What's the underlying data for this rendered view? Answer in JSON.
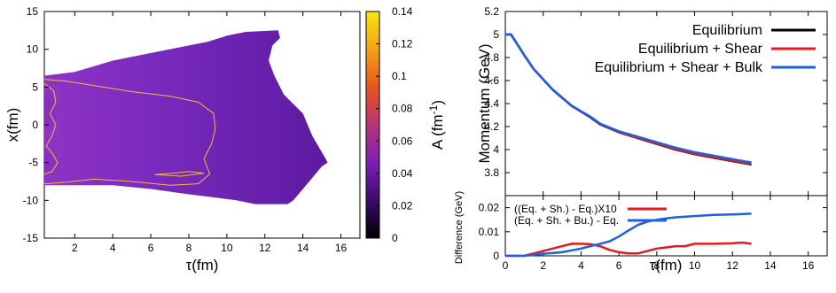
{
  "chart_data": [
    {
      "type": "heatmap",
      "xlabel": "τ(fm)",
      "ylabel": "x(fm)",
      "xlim": [
        0.4,
        17
      ],
      "ylim": [
        -15,
        15
      ],
      "xticks": [
        "2",
        "4",
        "6",
        "8",
        "10",
        "12",
        "14",
        "16"
      ],
      "yticks": [
        "15",
        "10",
        "5",
        "0",
        "-5",
        "-10",
        "-15"
      ],
      "colorbar": {
        "label": "A (fm",
        "label_exp": "-1",
        "label_close": ")",
        "range": [
          0,
          0.14
        ],
        "ticks": [
          "0.14",
          "0.12",
          "0.1",
          "0.08",
          "0.06",
          "0.04",
          "0.02",
          "0"
        ],
        "colors": [
          "#000000",
          "#3a0a6b",
          "#7e1fb3",
          "#b8337a",
          "#e5561e",
          "#f3a21a",
          "#f6e60f"
        ]
      },
      "contour_color": "#f5b942",
      "region_upper_boundary": [
        [
          0.4,
          6.5
        ],
        [
          2,
          7
        ],
        [
          4,
          8.5
        ],
        [
          6,
          9.5
        ],
        [
          8,
          10.5
        ],
        [
          9,
          11
        ],
        [
          10,
          11.8
        ],
        [
          11,
          12.3
        ],
        [
          12.7,
          12.5
        ],
        [
          12.8,
          11.5
        ],
        [
          12.4,
          10.5
        ],
        [
          12.2,
          8.5
        ],
        [
          12.5,
          6.5
        ],
        [
          13,
          4
        ],
        [
          14,
          1.5
        ],
        [
          14.5,
          -1.5
        ],
        [
          15.2,
          -4.5
        ],
        [
          15.3,
          -5
        ]
      ],
      "region_lower_boundary": [
        [
          0.4,
          -8
        ],
        [
          2,
          -8
        ],
        [
          4,
          -8
        ],
        [
          6,
          -8.5
        ],
        [
          8,
          -9.2
        ],
        [
          9,
          -9.5
        ],
        [
          10.5,
          -10
        ],
        [
          11.5,
          -10.5
        ],
        [
          13.2,
          -10.5
        ],
        [
          13.5,
          -10
        ],
        [
          14,
          -8.5
        ],
        [
          14.5,
          -7
        ],
        [
          15,
          -5.5
        ],
        [
          15.3,
          -5
        ]
      ]
    },
    {
      "type": "line",
      "xlabel": "",
      "ylabel": "Momentum (GeV)",
      "xlim": [
        0,
        17
      ],
      "ylim": [
        3.6,
        5.2
      ],
      "yticks": [
        "5.2",
        "5",
        "4.8",
        "4.6",
        "4.4",
        "4.2",
        "4",
        "3.8"
      ],
      "legend": "top-right",
      "series": [
        {
          "name": "Equilibrium",
          "color": "#000000",
          "x": [
            0,
            0.3,
            0.5,
            1,
            1.5,
            2,
            2.5,
            3,
            3.5,
            4,
            4.5,
            5,
            6,
            7,
            8,
            9,
            10,
            11,
            12,
            13
          ],
          "y": [
            5.0,
            5.0,
            4.95,
            4.82,
            4.7,
            4.61,
            4.52,
            4.45,
            4.38,
            4.33,
            4.28,
            4.22,
            4.15,
            4.1,
            4.05,
            4.0,
            3.96,
            3.93,
            3.9,
            3.87
          ]
        },
        {
          "name": "Equilibrium + Shear",
          "color": "#e41a1c",
          "x": [
            0,
            0.3,
            0.5,
            1,
            1.5,
            2,
            2.5,
            3,
            3.5,
            4,
            4.5,
            5,
            6,
            7,
            8,
            9,
            10,
            11,
            12,
            13
          ],
          "y": [
            5.0,
            5.0,
            4.95,
            4.82,
            4.7,
            4.61,
            4.52,
            4.45,
            4.38,
            4.333,
            4.285,
            4.224,
            4.152,
            4.102,
            4.053,
            4.003,
            3.964,
            3.934,
            3.904,
            3.874
          ]
        },
        {
          "name": "Equilibrium + Shear + Bulk",
          "color": "#1f5fe0",
          "x": [
            0,
            0.3,
            0.5,
            1,
            1.5,
            2,
            2.5,
            3,
            3.5,
            4,
            4.5,
            5,
            6,
            7,
            8,
            9,
            10,
            11,
            12,
            13
          ],
          "y": [
            5.0,
            5.0,
            4.95,
            4.82,
            4.7,
            4.611,
            4.522,
            4.452,
            4.383,
            4.333,
            4.285,
            4.226,
            4.159,
            4.112,
            4.064,
            4.016,
            3.977,
            3.947,
            3.917,
            3.888
          ]
        }
      ]
    },
    {
      "type": "line",
      "xlabel": "τ(fm)",
      "ylabel": "Difference (GeV)",
      "xlim": [
        0,
        17
      ],
      "ylim": [
        0,
        0.025
      ],
      "xticks": [
        "0",
        "2",
        "4",
        "6",
        "8",
        "10",
        "12",
        "14",
        "16"
      ],
      "yticks": [
        "0.02",
        "0.01",
        "0"
      ],
      "legend": "top-left",
      "series": [
        {
          "name": "((Eq. + Sh.) - Eq.)X10",
          "color": "#e41a1c",
          "x": [
            0,
            1,
            1.5,
            2,
            2.5,
            3,
            3.5,
            4,
            4.5,
            5,
            5.5,
            6,
            6.5,
            7,
            7.5,
            8,
            8.5,
            9,
            9.5,
            10,
            11,
            12,
            12.5,
            13
          ],
          "y": [
            0,
            0,
            0.001,
            0.002,
            0.003,
            0.004,
            0.005,
            0.005,
            0.0048,
            0.004,
            0.0025,
            0.0015,
            0.001,
            0.001,
            0.002,
            0.003,
            0.0035,
            0.004,
            0.004,
            0.005,
            0.005,
            0.0052,
            0.0055,
            0.005
          ]
        },
        {
          "name": "(Eq. + Sh. + Bu.) - Eq.",
          "color": "#1f5fe0",
          "x": [
            0,
            1,
            2,
            3,
            4,
            4.5,
            5,
            5.5,
            6,
            6.5,
            7,
            7.5,
            8,
            8.5,
            9,
            10,
            11,
            12,
            13
          ],
          "y": [
            0,
            0,
            0.0008,
            0.0015,
            0.003,
            0.004,
            0.005,
            0.006,
            0.008,
            0.0105,
            0.0128,
            0.0142,
            0.015,
            0.0155,
            0.016,
            0.0165,
            0.017,
            0.0172,
            0.0175
          ]
        }
      ]
    }
  ]
}
